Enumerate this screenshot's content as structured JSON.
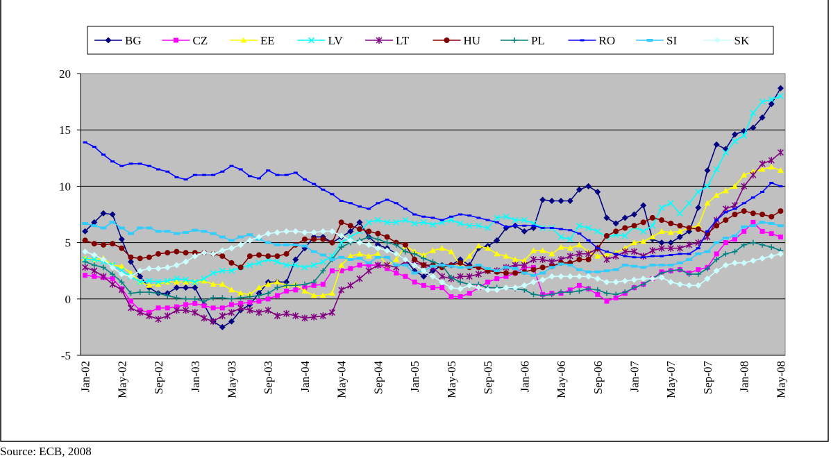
{
  "chart_data": {
    "type": "line",
    "source": "Source: ECB, 2008",
    "categories": [
      "Jan-02",
      null,
      null,
      null,
      "May-02",
      null,
      null,
      null,
      "Sep-02",
      null,
      null,
      null,
      "Jan-03",
      null,
      null,
      null,
      "May-03",
      null,
      null,
      null,
      "Sep-03",
      null,
      null,
      null,
      "Jan-04",
      null,
      null,
      null,
      "May-04",
      null,
      null,
      null,
      "Sep-04",
      null,
      null,
      null,
      "Jan-05",
      null,
      null,
      null,
      "May-05",
      null,
      null,
      null,
      "Sep-05",
      null,
      null,
      null,
      "Jan-06",
      null,
      null,
      null,
      "May-06",
      null,
      null,
      null,
      "Sep-06",
      null,
      null,
      null,
      "Jan-07",
      null,
      null,
      null,
      "May-07",
      null,
      null,
      null,
      "Sep-07",
      null,
      null,
      null,
      "Jan-08",
      null,
      null,
      null,
      "May-08"
    ],
    "ylim": [
      -5,
      20
    ],
    "yticks": [
      -5,
      0,
      5,
      10,
      15,
      20
    ],
    "grid": true,
    "legend": "top",
    "series": [
      {
        "name": "BG",
        "color": "#000080",
        "marker": "diamond",
        "values": [
          6.0,
          6.8,
          7.6,
          7.5,
          5.3,
          3.3,
          2.0,
          1.0,
          0.5,
          0.5,
          1.0,
          1.0,
          1.0,
          -0.5,
          -2.0,
          -2.5,
          -2.0,
          -1.0,
          -0.5,
          0.5,
          1.5,
          1.5,
          1.5,
          3.5,
          4.5,
          5.5,
          5.5,
          5.0,
          5.5,
          6.0,
          6.8,
          5.5,
          4.8,
          4.5,
          4.0,
          3.5,
          2.5,
          2.0,
          2.5,
          3.0,
          3.0,
          3.5,
          3.0,
          4.5,
          4.7,
          5.2,
          6.3,
          6.5,
          6.0,
          6.3,
          8.8,
          8.7,
          8.7,
          8.7,
          9.7,
          10.0,
          9.5,
          7.2,
          6.7,
          7.2,
          7.5,
          8.3,
          5.3,
          5.0,
          5.0,
          5.5,
          6.0,
          8.1,
          11.4,
          13.7,
          13.3,
          14.6,
          14.9,
          15.2,
          16.1,
          17.3,
          18.7
        ]
      },
      {
        "name": "CZ",
        "color": "#ff00ff",
        "marker": "square",
        "values": [
          2.1,
          2.0,
          1.9,
          1.8,
          0.9,
          -0.2,
          -1.0,
          -1.2,
          -0.8,
          -0.8,
          -0.7,
          -0.5,
          -0.4,
          -0.6,
          -0.8,
          -0.8,
          -0.5,
          -0.4,
          -0.3,
          -0.2,
          0.0,
          0.3,
          0.7,
          0.8,
          1.0,
          1.2,
          1.3,
          2.5,
          2.5,
          2.7,
          3.0,
          3.0,
          3.0,
          2.7,
          2.3,
          2.0,
          1.5,
          1.2,
          1.0,
          1.0,
          0.2,
          0.2,
          0.5,
          1.0,
          1.5,
          1.8,
          2.0,
          2.3,
          2.8,
          2.8,
          0.4,
          0.5,
          0.5,
          0.8,
          1.2,
          0.9,
          0.4,
          -0.2,
          0.1,
          0.5,
          1.0,
          1.3,
          1.8,
          2.4,
          2.5,
          2.6,
          2.3,
          2.6,
          2.8,
          4.0,
          5.0,
          5.3,
          6.0,
          6.8,
          6.0,
          5.8,
          5.5
        ]
      },
      {
        "name": "EE",
        "color": "#ffff00",
        "marker": "triangle",
        "values": [
          3.6,
          3.5,
          3.6,
          3.0,
          2.9,
          2.3,
          1.5,
          1.2,
          1.3,
          1.5,
          1.5,
          1.5,
          1.5,
          1.6,
          1.3,
          1.3,
          0.8,
          0.5,
          0.4,
          1.0,
          1.3,
          1.5,
          1.2,
          1.3,
          0.7,
          0.3,
          0.3,
          0.5,
          3.0,
          3.8,
          4.0,
          3.8,
          4.0,
          3.0,
          3.5,
          4.7,
          4.2,
          3.9,
          4.3,
          4.5,
          4.2,
          3.0,
          3.8,
          4.7,
          4.5,
          4.0,
          3.8,
          3.5,
          3.4,
          4.3,
          4.3,
          4.0,
          4.6,
          4.5,
          4.8,
          4.2,
          3.8,
          3.9,
          4.1,
          4.5,
          5.0,
          5.1,
          5.5,
          6.0,
          5.9,
          6.0,
          6.3,
          6.5,
          8.5,
          9.2,
          9.6,
          10.0,
          11.0,
          11.3,
          11.5,
          11.7,
          11.4
        ]
      },
      {
        "name": "LV",
        "color": "#00ffff",
        "marker": "x",
        "values": [
          3.5,
          3.5,
          3.3,
          3.0,
          2.5,
          2.0,
          1.5,
          1.6,
          1.5,
          1.6,
          1.8,
          1.7,
          1.5,
          1.8,
          2.3,
          2.5,
          2.5,
          2.8,
          3.0,
          3.2,
          3.5,
          3.3,
          3.0,
          3.0,
          2.8,
          3.0,
          3.3,
          3.8,
          5.0,
          5.5,
          6.0,
          6.8,
          7.0,
          6.8,
          6.8,
          7.0,
          6.7,
          6.8,
          6.6,
          6.8,
          7.0,
          6.7,
          6.5,
          6.5,
          6.3,
          7.2,
          7.3,
          7.0,
          7.0,
          6.7,
          6.3,
          6.3,
          5.5,
          5.3,
          6.5,
          6.3,
          6.0,
          5.5,
          5.7,
          5.6,
          6.4,
          6.0,
          6.5,
          8.1,
          8.5,
          7.6,
          8.5,
          9.5,
          10.0,
          11.5,
          13.0,
          14.0,
          14.5,
          16.5,
          17.5,
          17.7,
          18.0
        ]
      },
      {
        "name": "LT",
        "color": "#800080",
        "marker": "star",
        "values": [
          2.8,
          2.5,
          2.0,
          1.3,
          0.8,
          -0.8,
          -1.2,
          -1.5,
          -1.8,
          -1.5,
          -1.0,
          -1.0,
          -1.2,
          -1.7,
          -2.0,
          -1.5,
          -1.2,
          -0.8,
          -1.0,
          -1.2,
          -1.0,
          -1.5,
          -1.3,
          -1.5,
          -1.7,
          -1.6,
          -1.5,
          -1.2,
          0.8,
          1.2,
          1.8,
          2.5,
          3.0,
          3.0,
          2.8,
          3.3,
          3.2,
          3.0,
          2.8,
          2.0,
          1.8,
          2.0,
          2.0,
          2.2,
          2.5,
          2.5,
          2.8,
          3.0,
          3.0,
          3.5,
          3.5,
          3.3,
          3.5,
          3.8,
          4.0,
          4.0,
          4.5,
          3.5,
          3.8,
          4.2,
          4.2,
          3.8,
          4.3,
          4.5,
          4.5,
          4.5,
          4.8,
          5.0,
          5.5,
          7.0,
          8.0,
          8.3,
          10.0,
          11.0,
          12.0,
          12.3,
          13.0
        ]
      },
      {
        "name": "HU",
        "color": "#800000",
        "marker": "circle",
        "values": [
          5.2,
          4.9,
          4.8,
          4.9,
          4.5,
          3.7,
          3.6,
          3.7,
          4.0,
          4.1,
          4.2,
          4.1,
          4.1,
          4.1,
          4.0,
          3.8,
          3.2,
          2.8,
          3.8,
          3.9,
          3.8,
          3.8,
          4.0,
          4.8,
          5.3,
          5.3,
          5.3,
          5.0,
          6.8,
          6.5,
          6.2,
          6.0,
          5.8,
          5.5,
          5.0,
          4.8,
          3.5,
          3.0,
          3.0,
          2.8,
          3.0,
          3.2,
          2.8,
          2.8,
          2.5,
          2.4,
          2.3,
          2.3,
          2.4,
          2.6,
          2.8,
          2.9,
          3.2,
          3.2,
          3.5,
          3.5,
          4.5,
          5.6,
          6.0,
          6.3,
          6.5,
          6.8,
          7.2,
          7.0,
          6.7,
          6.5,
          6.3,
          6.2,
          5.8,
          6.5,
          7.0,
          7.5,
          7.8,
          7.6,
          7.5,
          7.3,
          7.8
        ]
      },
      {
        "name": "PL",
        "color": "#008080",
        "marker": "plus",
        "values": [
          3.3,
          3.0,
          2.8,
          2.2,
          1.5,
          0.5,
          0.6,
          0.6,
          0.5,
          0.3,
          0.1,
          0.0,
          0.0,
          -0.2,
          0.1,
          0.1,
          0.0,
          0.1,
          0.2,
          0.3,
          0.5,
          1.0,
          1.2,
          1.2,
          1.3,
          1.5,
          2.5,
          3.5,
          4.6,
          5.0,
          5.2,
          5.5,
          5.3,
          5.0,
          4.8,
          4.2,
          4.0,
          3.6,
          3.3,
          3.0,
          1.9,
          1.5,
          1.3,
          1.3,
          1.0,
          1.0,
          1.0,
          0.9,
          0.8,
          0.4,
          0.3,
          0.4,
          0.6,
          0.6,
          0.7,
          0.9,
          0.8,
          0.5,
          0.4,
          0.6,
          1.0,
          1.3,
          1.8,
          2.3,
          2.5,
          2.6,
          2.2,
          2.2,
          2.7,
          3.5,
          4.0,
          4.2,
          4.8,
          5.0,
          4.8,
          4.6,
          4.3
        ]
      },
      {
        "name": "RO",
        "color": "#0000ff",
        "marker": "dash",
        "values": [
          13.9,
          13.5,
          12.8,
          12.2,
          11.8,
          12.0,
          12.0,
          11.8,
          11.5,
          11.3,
          10.8,
          10.6,
          11.0,
          11.0,
          11.0,
          11.3,
          11.8,
          11.5,
          10.9,
          10.7,
          11.4,
          11.0,
          11.0,
          11.2,
          10.6,
          10.2,
          9.7,
          9.3,
          8.7,
          8.5,
          8.2,
          8.0,
          8.5,
          8.8,
          8.5,
          8.0,
          7.5,
          7.3,
          7.2,
          7.0,
          7.3,
          7.5,
          7.4,
          7.2,
          7.0,
          6.8,
          6.4,
          6.5,
          6.5,
          6.5,
          6.3,
          6.3,
          6.2,
          6.1,
          5.8,
          5.2,
          4.5,
          4.2,
          4.0,
          3.8,
          3.7,
          3.7,
          3.8,
          3.8,
          3.9,
          4.0,
          4.0,
          4.5,
          6.0,
          7.0,
          7.7,
          8.0,
          8.5,
          9.0,
          9.5,
          10.3,
          10.0
        ]
      },
      {
        "name": "SI",
        "color": "#33ccff",
        "marker": "bar",
        "values": [
          6.7,
          6.5,
          6.3,
          6.8,
          6.3,
          5.8,
          6.3,
          6.3,
          6.0,
          6.0,
          5.8,
          5.9,
          6.1,
          6.0,
          5.8,
          5.5,
          5.2,
          5.5,
          5.7,
          5.3,
          5.0,
          4.8,
          4.8,
          4.8,
          4.7,
          4.2,
          3.9,
          3.5,
          3.7,
          3.5,
          3.6,
          3.2,
          3.7,
          3.7,
          3.0,
          3.0,
          2.3,
          2.5,
          2.9,
          3.0,
          2.9,
          2.8,
          2.8,
          3.0,
          2.7,
          2.5,
          2.8,
          2.7,
          2.3,
          2.1,
          2.3,
          2.8,
          3.1,
          3.0,
          2.6,
          2.4,
          2.4,
          2.5,
          2.6,
          3.0,
          2.9,
          2.8,
          3.0,
          3.0,
          3.0,
          3.2,
          3.5,
          4.0,
          4.2,
          5.0,
          5.4,
          5.6,
          6.4,
          6.5,
          6.8,
          6.7,
          6.5
        ]
      },
      {
        "name": "SK",
        "color": "#ccffff",
        "marker": "diamond",
        "values": [
          4.2,
          3.9,
          3.5,
          2.8,
          2.2,
          2.0,
          2.5,
          2.7,
          2.7,
          2.8,
          3.0,
          3.3,
          3.8,
          4.1,
          4.0,
          4.3,
          4.5,
          4.8,
          5.2,
          5.5,
          5.8,
          5.9,
          6.0,
          6.0,
          5.9,
          5.9,
          6.0,
          6.0,
          5.6,
          5.2,
          5.0,
          4.8,
          4.5,
          4.3,
          4.0,
          3.5,
          3.0,
          2.5,
          2.0,
          1.5,
          1.0,
          0.9,
          1.2,
          1.0,
          0.8,
          0.8,
          1.0,
          1.0,
          1.2,
          1.5,
          1.7,
          2.0,
          2.0,
          2.0,
          2.0,
          2.0,
          1.8,
          1.5,
          1.5,
          1.6,
          1.7,
          1.8,
          1.8,
          1.9,
          1.5,
          1.3,
          1.2,
          1.2,
          1.8,
          2.5,
          3.0,
          3.2,
          3.2,
          3.4,
          3.6,
          3.8,
          4.0
        ]
      }
    ]
  }
}
